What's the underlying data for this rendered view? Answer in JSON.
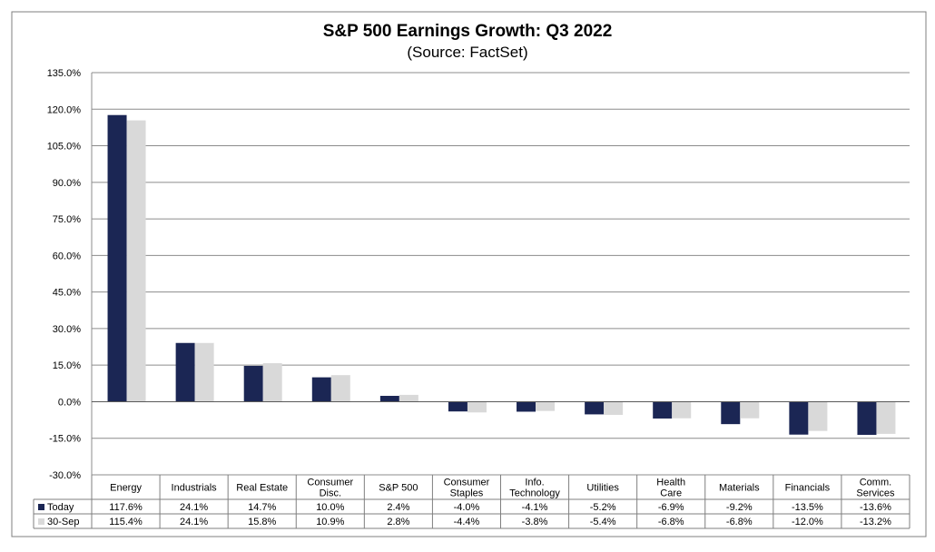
{
  "chart_data": {
    "type": "bar",
    "title": "S&P 500 Earnings Growth: Q3 2022",
    "subtitle": "(Source: FactSet)",
    "ylim": [
      -30,
      135
    ],
    "yticks": [
      "135.0%",
      "120.0%",
      "105.0%",
      "90.0%",
      "75.0%",
      "60.0%",
      "45.0%",
      "30.0%",
      "15.0%",
      "0.0%",
      "-15.0%",
      "-30.0%"
    ],
    "ytick_values": [
      135,
      120,
      105,
      90,
      75,
      60,
      45,
      30,
      15,
      0,
      -15,
      -30
    ],
    "grid": true,
    "categories": [
      [
        "Energy"
      ],
      [
        "Industrials"
      ],
      [
        "Real Estate"
      ],
      [
        "Consumer",
        "Disc."
      ],
      [
        "S&P 500"
      ],
      [
        "Consumer",
        "Staples"
      ],
      [
        "Info.",
        "Technology"
      ],
      [
        "Utilities"
      ],
      [
        "Health",
        "Care"
      ],
      [
        "Materials"
      ],
      [
        "Financials"
      ],
      [
        "Comm.",
        "Services"
      ]
    ],
    "series": [
      {
        "name": "Today",
        "color": "#1b2654",
        "values": [
          117.6,
          24.1,
          14.7,
          10.0,
          2.4,
          -4.0,
          -4.1,
          -5.2,
          -6.9,
          -9.2,
          -13.5,
          -13.6
        ],
        "labels": [
          "117.6%",
          "24.1%",
          "14.7%",
          "10.0%",
          "2.4%",
          "-4.0%",
          "-4.1%",
          "-5.2%",
          "-6.9%",
          "-9.2%",
          "-13.5%",
          "-13.6%"
        ]
      },
      {
        "name": "30-Sep",
        "color": "#d9d9d9",
        "values": [
          115.4,
          24.1,
          15.8,
          10.9,
          2.8,
          -4.4,
          -3.8,
          -5.4,
          -6.8,
          -6.8,
          -12.0,
          -13.2
        ],
        "labels": [
          "115.4%",
          "24.1%",
          "15.8%",
          "10.9%",
          "2.8%",
          "-4.4%",
          "-3.8%",
          "-5.4%",
          "-6.8%",
          "-6.8%",
          "-12.0%",
          "-13.2%"
        ]
      }
    ]
  }
}
